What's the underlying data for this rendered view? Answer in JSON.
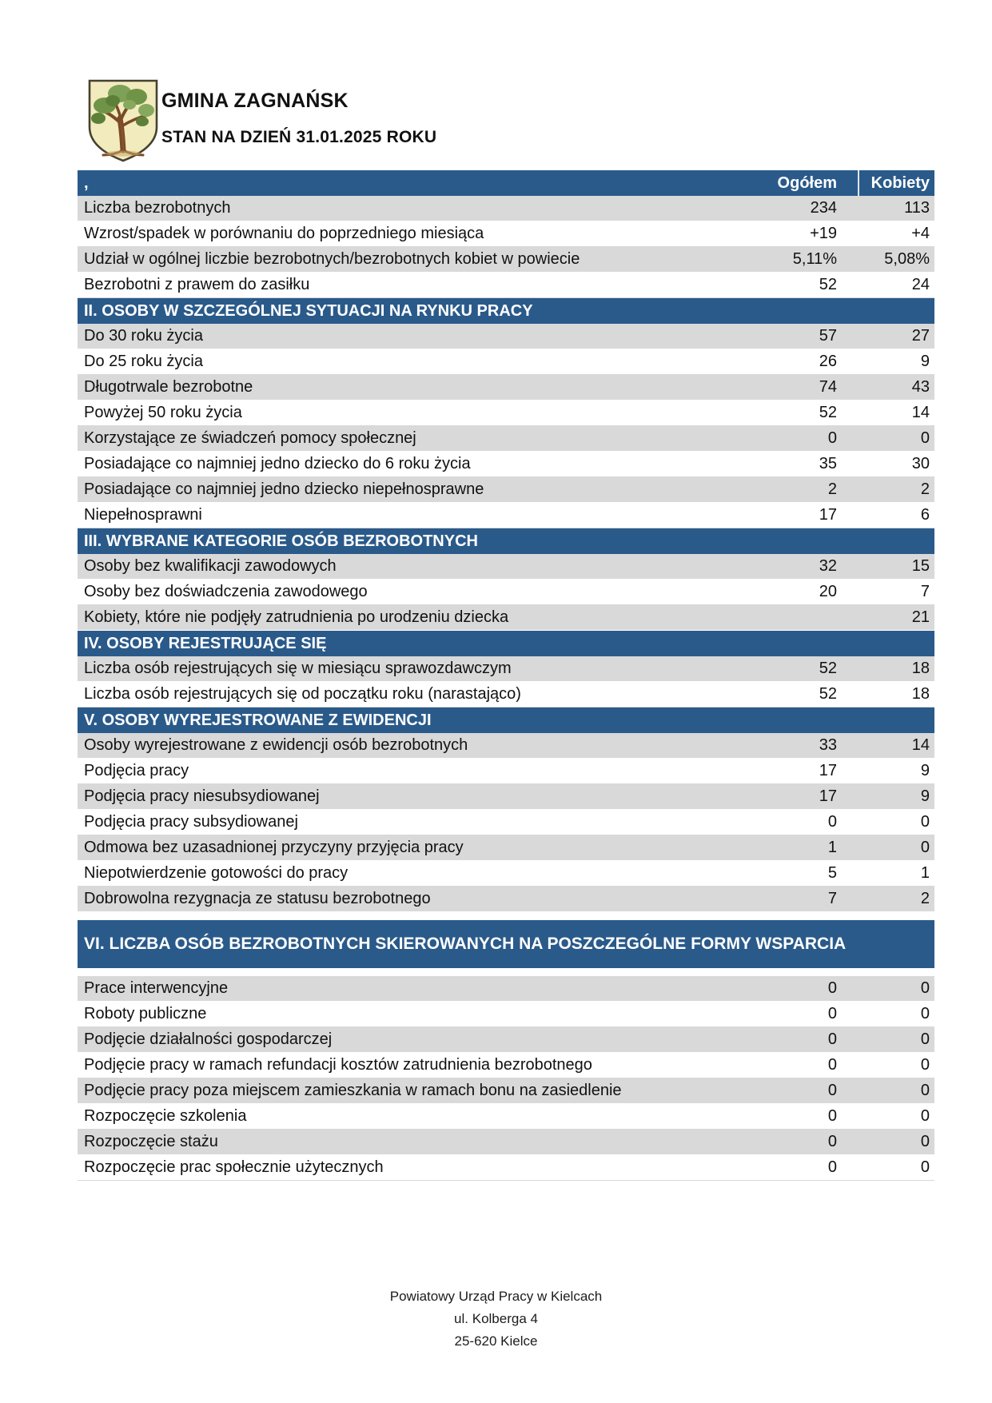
{
  "header": {
    "logo": "coat-of-arms-oak-tree",
    "title": "GMINA ZAGNAŃSK",
    "subtitle": "STAN NA DZIEŃ 31.01.2025 ROKU"
  },
  "table": {
    "columns": {
      "label": ",",
      "total": "Ogółem",
      "women": "Kobiety"
    },
    "rows": [
      {
        "type": "data",
        "label": "Liczba bezrobotnych",
        "total": "234",
        "women": "113"
      },
      {
        "type": "data",
        "label": "Wzrost/spadek w porównaniu do poprzedniego miesiąca",
        "total": "+19",
        "women": "+4"
      },
      {
        "type": "data",
        "label": "Udział w ogólnej liczbie bezrobotnych/bezrobotnych kobiet w powiecie",
        "total": "5,11%",
        "women": "5,08%"
      },
      {
        "type": "data",
        "label": "Bezrobotni z prawem do zasiłku",
        "total": "52",
        "women": "24"
      },
      {
        "type": "section",
        "label": "II. OSOBY W SZCZEGÓLNEJ SYTUACJI NA RYNKU PRACY"
      },
      {
        "type": "data",
        "label": "Do 30 roku życia",
        "total": "57",
        "women": "27"
      },
      {
        "type": "data",
        "label": "Do 25 roku życia",
        "total": "26",
        "women": "9"
      },
      {
        "type": "data",
        "label": "Długotrwale bezrobotne",
        "total": "74",
        "women": "43"
      },
      {
        "type": "data",
        "label": "Powyżej 50 roku życia",
        "total": "52",
        "women": "14"
      },
      {
        "type": "data",
        "label": "Korzystające ze świadczeń pomocy społecznej",
        "total": "0",
        "women": "0"
      },
      {
        "type": "data",
        "label": "Posiadające co najmniej jedno dziecko do 6 roku życia",
        "total": "35",
        "women": "30"
      },
      {
        "type": "data",
        "label": "Posiadające co najmniej jedno dziecko niepełnosprawne",
        "total": "2",
        "women": "2"
      },
      {
        "type": "data",
        "label": "Niepełnosprawni",
        "total": "17",
        "women": "6"
      },
      {
        "type": "section",
        "label": "III. WYBRANE KATEGORIE OSÓB BEZROBOTNYCH"
      },
      {
        "type": "data",
        "label": "Osoby bez kwalifikacji zawodowych",
        "total": "32",
        "women": "15"
      },
      {
        "type": "data",
        "label": "Osoby bez doświadczenia zawodowego",
        "total": "20",
        "women": "7"
      },
      {
        "type": "data",
        "label": "Kobiety, które nie podjęły zatrudnienia po urodzeniu dziecka",
        "total": "",
        "women": "21"
      },
      {
        "type": "section",
        "label": "IV. OSOBY REJESTRUJĄCE SIĘ"
      },
      {
        "type": "data",
        "label": "Liczba osób rejestrujących się w miesiącu sprawozdawczym",
        "total": "52",
        "women": "18"
      },
      {
        "type": "data",
        "label": "Liczba osób rejestrujących się od początku roku (narastająco)",
        "total": "52",
        "women": "18"
      },
      {
        "type": "section",
        "label": "V. OSOBY WYREJESTROWANE Z EWIDENCJI"
      },
      {
        "type": "data",
        "label": "Osoby wyrejestrowane z ewidencji osób bezrobotnych",
        "total": "33",
        "women": "14"
      },
      {
        "type": "data",
        "label": "Podjęcia pracy",
        "total": "17",
        "women": "9"
      },
      {
        "type": "data",
        "label": "Podjęcia pracy niesubsydiowanej",
        "total": "17",
        "women": "9"
      },
      {
        "type": "data",
        "label": "Podjęcia pracy subsydiowanej",
        "total": "0",
        "women": "0"
      },
      {
        "type": "data",
        "label": "Odmowa bez uzasadnionej przyczyny przyjęcia pracy",
        "total": "1",
        "women": "0"
      },
      {
        "type": "data",
        "label": "Niepotwierdzenie gotowości do pracy",
        "total": "5",
        "women": "1"
      },
      {
        "type": "data",
        "label": "Dobrowolna rezygnacja ze statusu bezrobotnego",
        "total": "7",
        "women": "2"
      },
      {
        "type": "gap"
      },
      {
        "type": "section-tall",
        "label": "VI. LICZBA OSÓB BEZROBOTNYCH SKIEROWANYCH NA POSZCZEGÓLNE FORMY WSPARCIA"
      },
      {
        "type": "gap"
      },
      {
        "type": "data",
        "label": "Prace interwencyjne",
        "total": "0",
        "women": "0"
      },
      {
        "type": "data",
        "label": "Roboty publiczne",
        "total": "0",
        "women": "0"
      },
      {
        "type": "data",
        "label": "Podjęcie działalności gospodarczej",
        "total": "0",
        "women": "0"
      },
      {
        "type": "data",
        "label": "Podjęcie pracy w ramach refundacji kosztów zatrudnienia bezrobotnego",
        "total": "0",
        "women": "0"
      },
      {
        "type": "data",
        "label": "Podjęcie pracy poza miejscem zamieszkania w ramach bonu na zasiedlenie",
        "total": "0",
        "women": "0"
      },
      {
        "type": "data",
        "label": "Rozpoczęcie szkolenia",
        "total": "0",
        "women": "0"
      },
      {
        "type": "data",
        "label": "Rozpoczęcie stażu",
        "total": "0",
        "women": "0"
      },
      {
        "type": "data",
        "label": "Rozpoczęcie prac społecznie użytecznych",
        "total": "0",
        "women": "0"
      }
    ]
  },
  "footer": {
    "lines": [
      "Powiatowy Urząd Pracy w Kielcach",
      "ul. Kolberga 4",
      "25-620 Kielce"
    ]
  },
  "colors": {
    "header_blue": "#2A5A8A",
    "row_gray": "#D9D9D9",
    "text": "#111111"
  }
}
